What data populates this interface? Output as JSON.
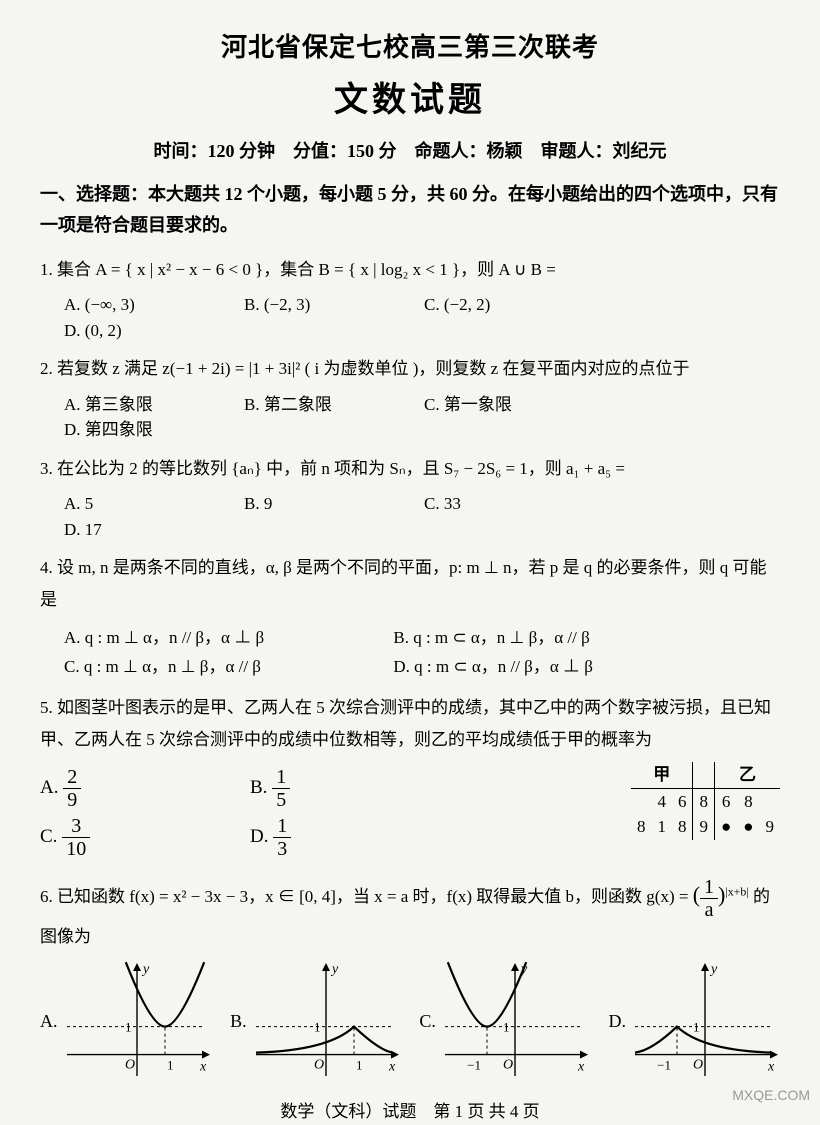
{
  "header": {
    "title1": "河北省保定七校高三第三次联考",
    "title2": "文数试题",
    "meta": "时间：120 分钟 分值：150 分 命题人：杨颖 审题人：刘纪元"
  },
  "section1": {
    "heading": "一、选择题：本大题共 12 个小题，每小题 5 分，共 60 分。在每小题给出的四个选项中，只有一项是符合题目要求的。"
  },
  "q1": {
    "text": "1. 集合 A = { x | x² − x − 6 < 0 }，集合 B = { x | log₂ x < 1 }，则 A ∪ B =",
    "opts": {
      "A": "A. (−∞, 3)",
      "B": "B. (−2, 3)",
      "C": "C. (−2, 2)",
      "D": "D. (0, 2)"
    }
  },
  "q2": {
    "text": "2. 若复数 z 满足 z(−1 + 2i) = |1 + 3i|² ( i 为虚数单位 )，则复数 z 在复平面内对应的点位于",
    "opts": {
      "A": "A. 第三象限",
      "B": "B. 第二象限",
      "C": "C. 第一象限",
      "D": "D. 第四象限"
    }
  },
  "q3": {
    "text": "3. 在公比为 2 的等比数列 {aₙ} 中，前 n 项和为 Sₙ，且 S₇ − 2S₆ = 1，则 a₁ + a₅ =",
    "opts": {
      "A": "A. 5",
      "B": "B. 9",
      "C": "C. 33",
      "D": "D. 17"
    }
  },
  "q4": {
    "text": "4. 设 m, n 是两条不同的直线，α, β 是两个不同的平面，p:  m ⊥ n，若 p 是 q 的必要条件，则 q 可能是",
    "opts": {
      "A": "A. q : m ⊥ α，n // β，α ⊥ β",
      "B": "B. q : m ⊂ α，n ⊥ β，α // β",
      "C": "C. q : m ⊥ α，n ⊥ β，α // β",
      "D": "D. q : m ⊂ α，n // β，α ⊥ β"
    }
  },
  "q5": {
    "text": "5. 如图茎叶图表示的是甲、乙两人在 5 次综合测评中的成绩，其中乙中的两个数字被污损，且已知甲、乙两人在 5 次综合测评中的成绩中位数相等，则乙的平均成绩低于甲的概率为",
    "opts": {
      "A_label": "A.",
      "A_num": "2",
      "A_den": "9",
      "B_label": "B.",
      "B_num": "1",
      "B_den": "5",
      "C_label": "C.",
      "C_num": "3",
      "C_den": "10",
      "D_label": "D.",
      "D_num": "1",
      "D_den": "3"
    },
    "stemleaf": {
      "header_left": "甲",
      "header_right": "乙",
      "rows": [
        {
          "left": [
            "",
            "4",
            "6"
          ],
          "stem": "8",
          "right": [
            "6",
            "8",
            ""
          ]
        },
        {
          "left": [
            "8",
            "1",
            "8"
          ],
          "stem": "9",
          "right": [
            "●",
            "●",
            "9"
          ]
        }
      ],
      "colors": {
        "line": "#000000"
      }
    }
  },
  "q6": {
    "text_prefix": "6. 已知函数 f(x) = x² − 3x − 3，x ∈ [0, 4]，当 x = a 时，f(x) 取得最大值 b，则函数 g(x) = ",
    "frac_num": "1",
    "frac_den": "a",
    "exp_text": "|x+b|",
    "text_suffix": " 的图像为",
    "graphs": {
      "common": {
        "width": 150,
        "height": 120,
        "axis_color": "#000000",
        "dash_color": "#000000",
        "curve_color": "#000000",
        "bg": "#f5f5f2",
        "y_label": "y",
        "x_label": "x",
        "origin_label": "O",
        "one_label": "1",
        "stroke_width_axis": 1.4,
        "stroke_width_curve": 2.2,
        "dash_pattern": "3,3"
      },
      "A": {
        "label": "A.",
        "vertex_x": 1,
        "vertex_y": 1,
        "shape": "cusp_up",
        "x_tick_side": "right"
      },
      "B": {
        "label": "B.",
        "vertex_x": 1,
        "vertex_y": 1,
        "shape": "peak_down",
        "x_tick_side": "right"
      },
      "C": {
        "label": "C.",
        "vertex_x": -1,
        "vertex_y": 1,
        "shape": "cusp_up",
        "x_tick_side": "left"
      },
      "D": {
        "label": "D.",
        "vertex_x": -1,
        "vertex_y": 1,
        "shape": "peak_down",
        "x_tick_side": "left"
      }
    }
  },
  "footer": {
    "text": "数学（文科）试题　第 1 页 共 4 页"
  },
  "watermark": {
    "text": "MXQE.COM"
  }
}
